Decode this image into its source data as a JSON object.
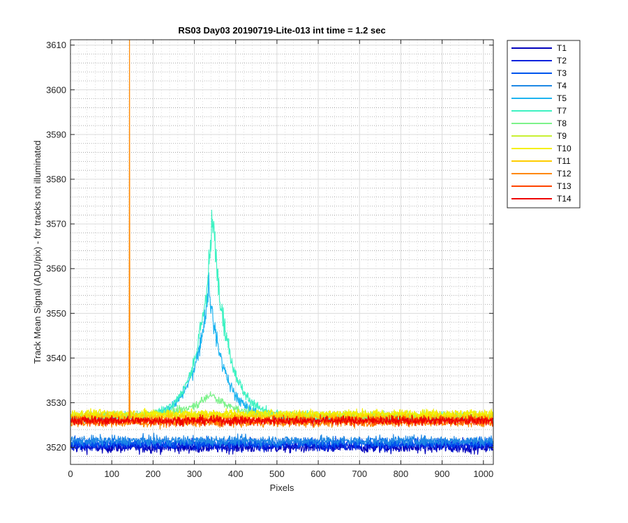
{
  "chart_data": {
    "type": "line",
    "title": "RS03 Day03 20190719-Lite-013 int time = 1.2 sec",
    "xlabel": "Pixels",
    "ylabel": "Track Mean Signal (ADU/pix) - for tracks not illuminated",
    "xlim": [
      0,
      1024
    ],
    "ylim": [
      3516.2,
      3611.2
    ],
    "x_ticks": [
      "0",
      "100",
      "200",
      "300",
      "400",
      "500",
      "600",
      "700",
      "800",
      "900",
      "1000"
    ],
    "y_ticks": [
      "3520",
      "3530",
      "3540",
      "3550",
      "3560",
      "3570",
      "3580",
      "3590",
      "3600",
      "3610"
    ],
    "grid": "on (major solid, minor dotted)",
    "legend_position": "outside-right-top",
    "series": [
      {
        "name": "T1",
        "color": "#0000bb",
        "baseline": 3520.0,
        "noise": 1.6
      },
      {
        "name": "T2",
        "color": "#0022dd",
        "baseline": 3520.5,
        "noise": 1.6
      },
      {
        "name": "T3",
        "color": "#0055ee",
        "baseline": 3521.0,
        "noise": 1.5
      },
      {
        "name": "T4",
        "color": "#1e88e5",
        "baseline": 3521.5,
        "noise": 1.5
      },
      {
        "name": "T5",
        "color": "#1eb4f0",
        "baseline": 3526.5,
        "noise": 1.3,
        "peak": {
          "center": 335,
          "height": 29.5,
          "width": 60
        }
      },
      {
        "name": "T7",
        "color": "#3ef2c2",
        "baseline": 3526.8,
        "noise": 1.3,
        "peak": {
          "center": 345,
          "height": 44.5,
          "width": 58
        }
      },
      {
        "name": "T8",
        "color": "#7cf28a",
        "baseline": 3527.0,
        "noise": 1.2,
        "peak": {
          "center": 340,
          "height": 5.0,
          "width": 90
        }
      },
      {
        "name": "T9",
        "color": "#c8f032",
        "baseline": 3527.2,
        "noise": 1.2
      },
      {
        "name": "T10",
        "color": "#f5f000",
        "baseline": 3527.6,
        "noise": 1.2
      },
      {
        "name": "T11",
        "color": "#ffcc00",
        "baseline": 3526.8,
        "noise": 1.2
      },
      {
        "name": "T12",
        "color": "#ff8800",
        "baseline": 3525.5,
        "noise": 1.2,
        "spike": {
          "x": 143,
          "value": 3611.2
        }
      },
      {
        "name": "T13",
        "color": "#ff4400",
        "baseline": 3526.0,
        "noise": 1.3
      },
      {
        "name": "T14",
        "color": "#ee0000",
        "baseline": 3526.0,
        "noise": 1.3
      }
    ]
  }
}
